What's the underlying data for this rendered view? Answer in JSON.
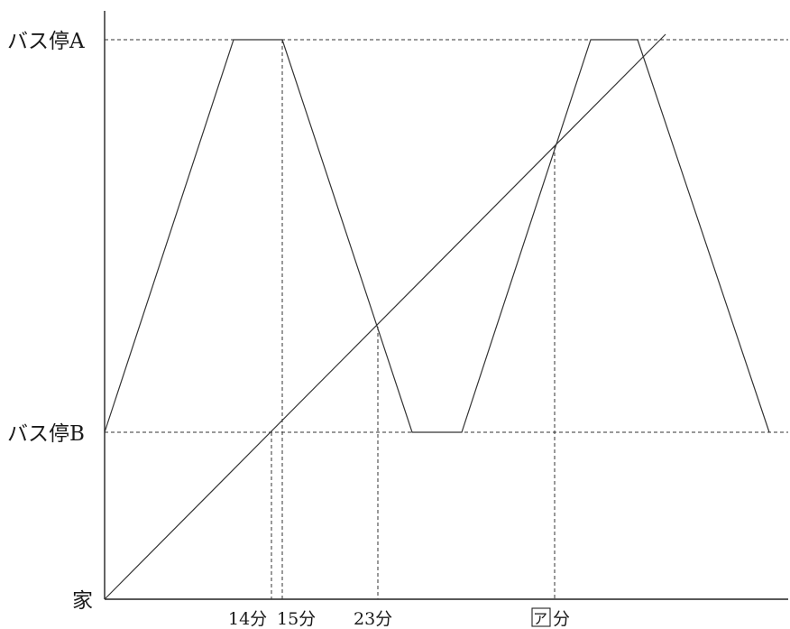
{
  "y_axis": {
    "labels": {
      "bus_stop_a": "バス停A",
      "bus_stop_b": "バス停B",
      "home": "家"
    }
  },
  "x_axis": {
    "ticks": [
      {
        "key": "t14",
        "label": "14分"
      },
      {
        "key": "t15",
        "label": "15分"
      },
      {
        "key": "t23",
        "label": "23分"
      },
      {
        "key": "blank",
        "box": "ア",
        "suffix": "分"
      }
    ]
  },
  "lines": [
    {
      "name": "bus",
      "description_shown": false
    },
    {
      "name": "walker",
      "description_shown": false
    }
  ]
}
